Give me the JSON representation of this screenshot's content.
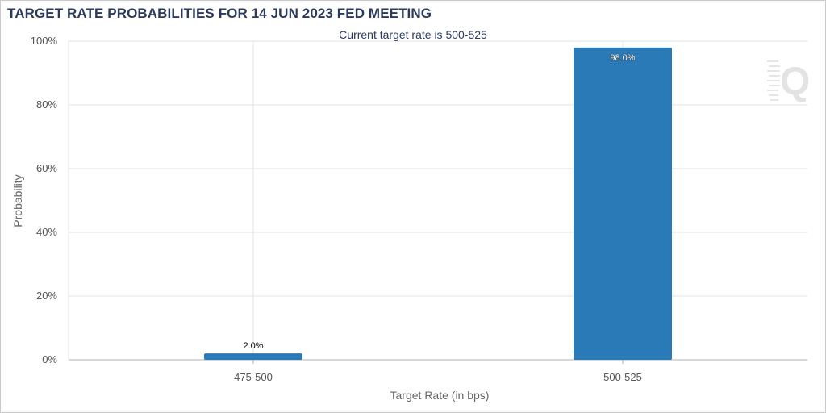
{
  "colors": {
    "bar": "#2a7ab8",
    "grid": "#e3e3e3",
    "axis": "#b0b0b0",
    "title": "#2b3a5c"
  },
  "watermark": {
    "icon": "quikstrike-q-logo-icon"
  },
  "chart_data": {
    "type": "bar",
    "title": "TARGET RATE PROBABILITIES FOR 14 JUN 2023 FED MEETING",
    "subtitle": "Current target rate is 500-525",
    "xlabel": "Target Rate (in bps)",
    "ylabel": "Probability",
    "categories": [
      "475-500",
      "500-525"
    ],
    "values": [
      2.0,
      98.0
    ],
    "value_labels": [
      "2.0%",
      "98.0%"
    ],
    "ylim": [
      0,
      100
    ],
    "yticks": [
      0,
      20,
      40,
      60,
      80,
      100
    ],
    "ytick_labels": [
      "0%",
      "20%",
      "40%",
      "60%",
      "80%",
      "100%"
    ],
    "grid": true,
    "legend": "none"
  }
}
